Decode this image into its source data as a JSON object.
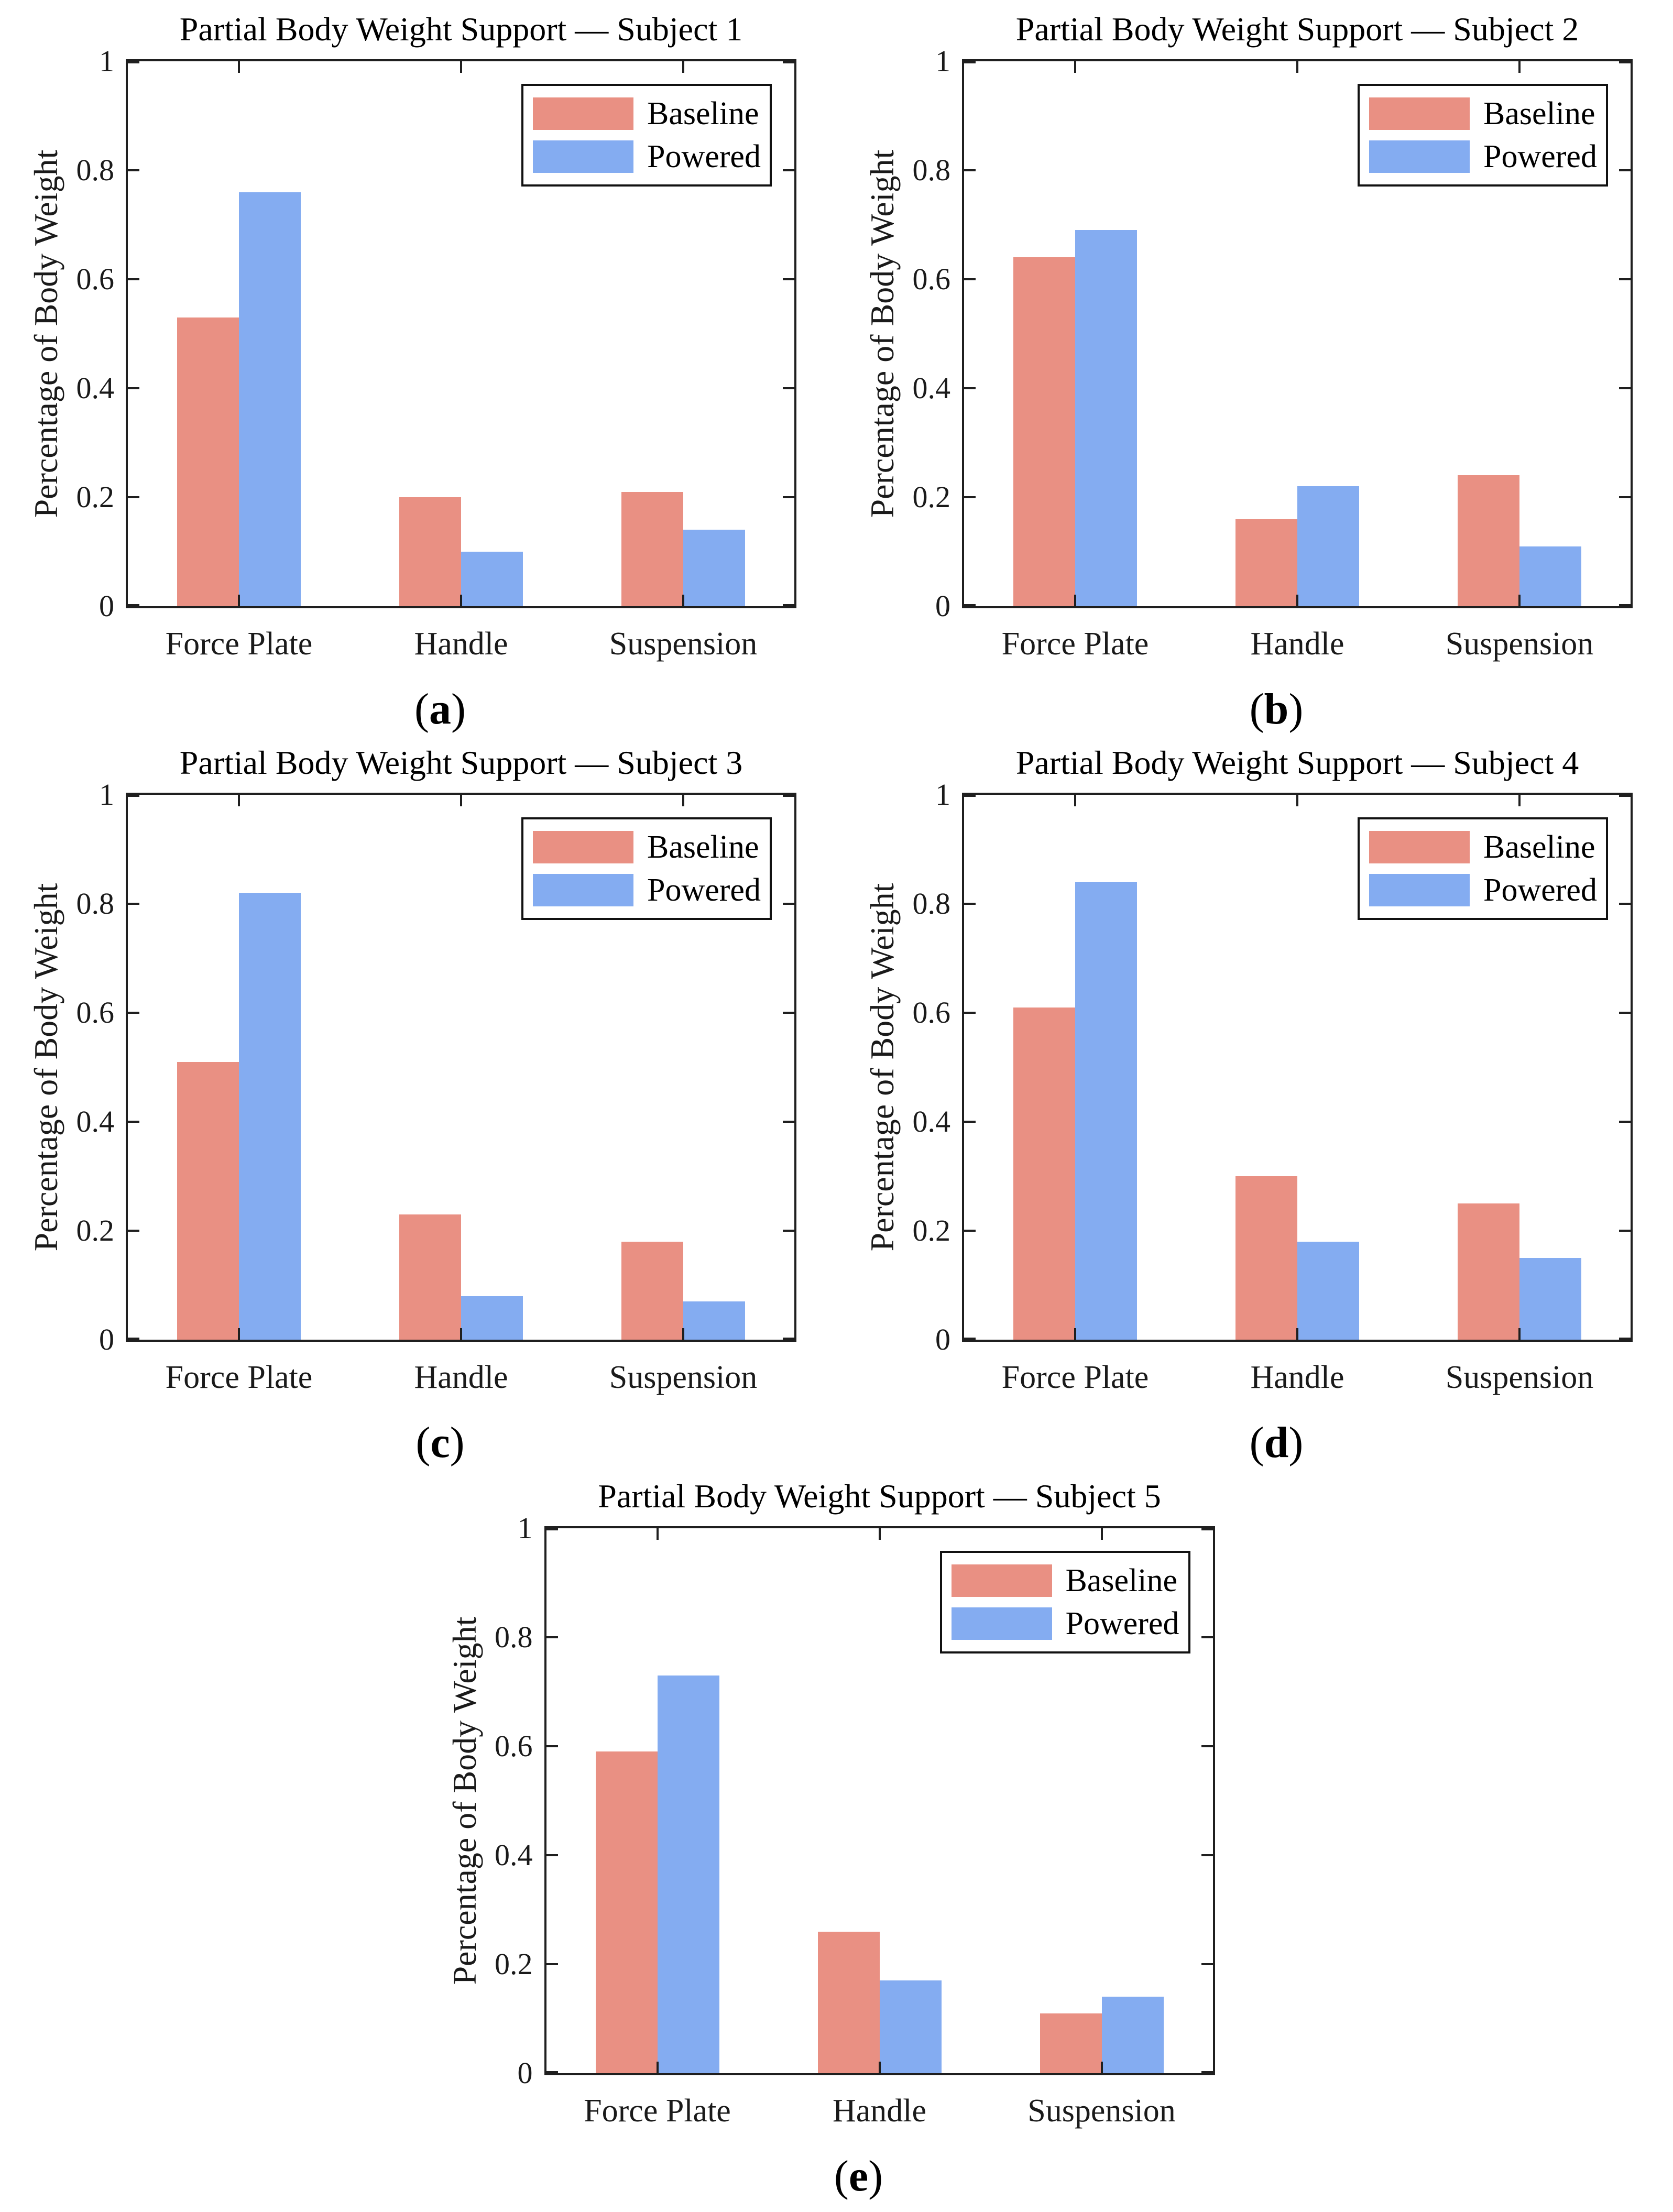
{
  "caption_format": {
    "open": "(",
    "close": ")"
  },
  "layout": {
    "rows": [
      [
        "a",
        "b"
      ],
      [
        "c",
        "d"
      ],
      [
        "e"
      ]
    ]
  },
  "chart_data": [
    {
      "type": "bar",
      "panel_label": "a",
      "title": "Partial Body Weight Support — Subject 1",
      "categories": [
        "Force Plate",
        "Handle",
        "Suspension"
      ],
      "series": [
        {
          "name": "Baseline",
          "color": "#E99083",
          "values": [
            0.53,
            0.2,
            0.21
          ]
        },
        {
          "name": "Powered",
          "color": "#84ACF1",
          "values": [
            0.76,
            0.1,
            0.14
          ]
        }
      ],
      "xlabel": "",
      "ylabel": "Percentage of Body Weight",
      "ylim": [
        0,
        1
      ],
      "yticks": [
        0,
        0.2,
        0.4,
        0.6,
        0.8,
        1
      ],
      "legend_position": "top-right",
      "grid": false
    },
    {
      "type": "bar",
      "panel_label": "b",
      "title": "Partial Body Weight Support — Subject 2",
      "categories": [
        "Force Plate",
        "Handle",
        "Suspension"
      ],
      "series": [
        {
          "name": "Baseline",
          "color": "#E99083",
          "values": [
            0.64,
            0.16,
            0.24
          ]
        },
        {
          "name": "Powered",
          "color": "#84ACF1",
          "values": [
            0.69,
            0.22,
            0.11
          ]
        }
      ],
      "xlabel": "",
      "ylabel": "Percentage of Body Weight",
      "ylim": [
        0,
        1
      ],
      "yticks": [
        0,
        0.2,
        0.4,
        0.6,
        0.8,
        1
      ],
      "legend_position": "top-right",
      "grid": false
    },
    {
      "type": "bar",
      "panel_label": "c",
      "title": "Partial Body Weight Support — Subject 3",
      "categories": [
        "Force Plate",
        "Handle",
        "Suspension"
      ],
      "series": [
        {
          "name": "Baseline",
          "color": "#E99083",
          "values": [
            0.51,
            0.23,
            0.18
          ]
        },
        {
          "name": "Powered",
          "color": "#84ACF1",
          "values": [
            0.82,
            0.08,
            0.07
          ]
        }
      ],
      "xlabel": "",
      "ylabel": "Percentage of Body Weight",
      "ylim": [
        0,
        1
      ],
      "yticks": [
        0,
        0.2,
        0.4,
        0.6,
        0.8,
        1
      ],
      "legend_position": "top-right",
      "grid": false
    },
    {
      "type": "bar",
      "panel_label": "d",
      "title": "Partial Body Weight Support — Subject 4",
      "categories": [
        "Force Plate",
        "Handle",
        "Suspension"
      ],
      "series": [
        {
          "name": "Baseline",
          "color": "#E99083",
          "values": [
            0.61,
            0.3,
            0.25
          ]
        },
        {
          "name": "Powered",
          "color": "#84ACF1",
          "values": [
            0.84,
            0.18,
            0.15
          ]
        }
      ],
      "xlabel": "",
      "ylabel": "Percentage of Body Weight",
      "ylim": [
        0,
        1
      ],
      "yticks": [
        0,
        0.2,
        0.4,
        0.6,
        0.8,
        1
      ],
      "legend_position": "top-right",
      "grid": false
    },
    {
      "type": "bar",
      "panel_label": "e",
      "title": "Partial Body Weight Support — Subject 5",
      "categories": [
        "Force Plate",
        "Handle",
        "Suspension"
      ],
      "series": [
        {
          "name": "Baseline",
          "color": "#E99083",
          "values": [
            0.59,
            0.26,
            0.11
          ]
        },
        {
          "name": "Powered",
          "color": "#84ACF1",
          "values": [
            0.73,
            0.17,
            0.14
          ]
        }
      ],
      "xlabel": "",
      "ylabel": "Percentage of Body Weight",
      "ylim": [
        0,
        1
      ],
      "yticks": [
        0,
        0.2,
        0.4,
        0.6,
        0.8,
        1
      ],
      "legend_position": "top-right",
      "grid": false
    }
  ]
}
